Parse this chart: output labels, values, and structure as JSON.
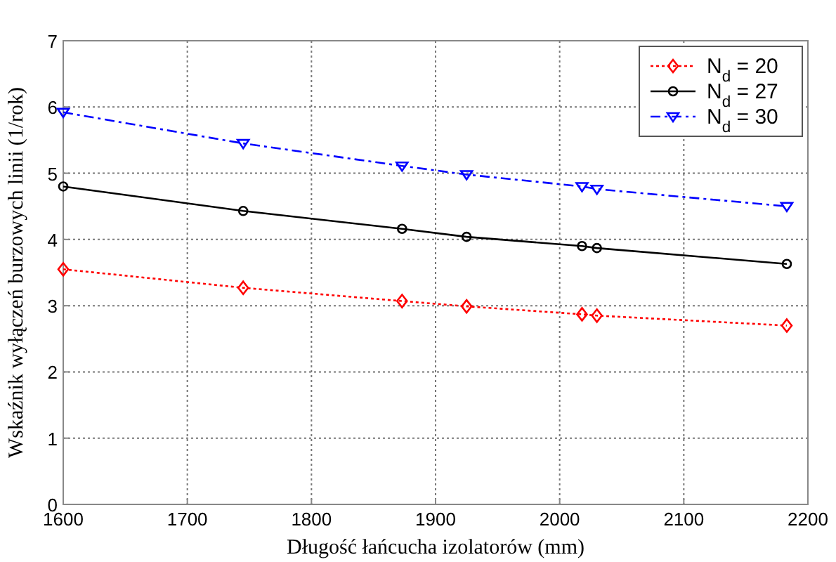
{
  "chart_data": {
    "type": "line",
    "xlabel": "Długość łańcucha izolatorów (mm)",
    "ylabel": "Wskaźnik wyłączeń burzowych linii (1/rok)",
    "x": [
      1600,
      1745,
      1873,
      1925,
      2018,
      2030,
      2183
    ],
    "series": [
      {
        "name": "N$_{d}$ = 20",
        "color": "#ff0000",
        "marker": "diamond",
        "line_style": "dotted",
        "values": [
          3.55,
          3.27,
          3.07,
          2.99,
          2.87,
          2.85,
          2.7
        ]
      },
      {
        "name": "N$_{d}$ = 27",
        "color": "#000000",
        "marker": "circle",
        "line_style": "solid",
        "values": [
          4.8,
          4.43,
          4.16,
          4.04,
          3.9,
          3.87,
          3.63
        ]
      },
      {
        "name": "N$_{d}$ = 30",
        "color": "#0000ff",
        "marker": "triangle",
        "line_style": "dashed",
        "values": [
          5.92,
          5.45,
          5.11,
          4.98,
          4.8,
          4.76,
          4.5
        ]
      }
    ],
    "xlim": [
      1600,
      2200
    ],
    "xticks": [
      1600,
      1700,
      1800,
      1900,
      2000,
      2100,
      2200
    ],
    "ylim": [
      0,
      7
    ],
    "yticks": [
      0,
      1,
      2,
      3,
      4,
      5,
      6,
      7
    ],
    "grid": true,
    "legend": "top right"
  }
}
